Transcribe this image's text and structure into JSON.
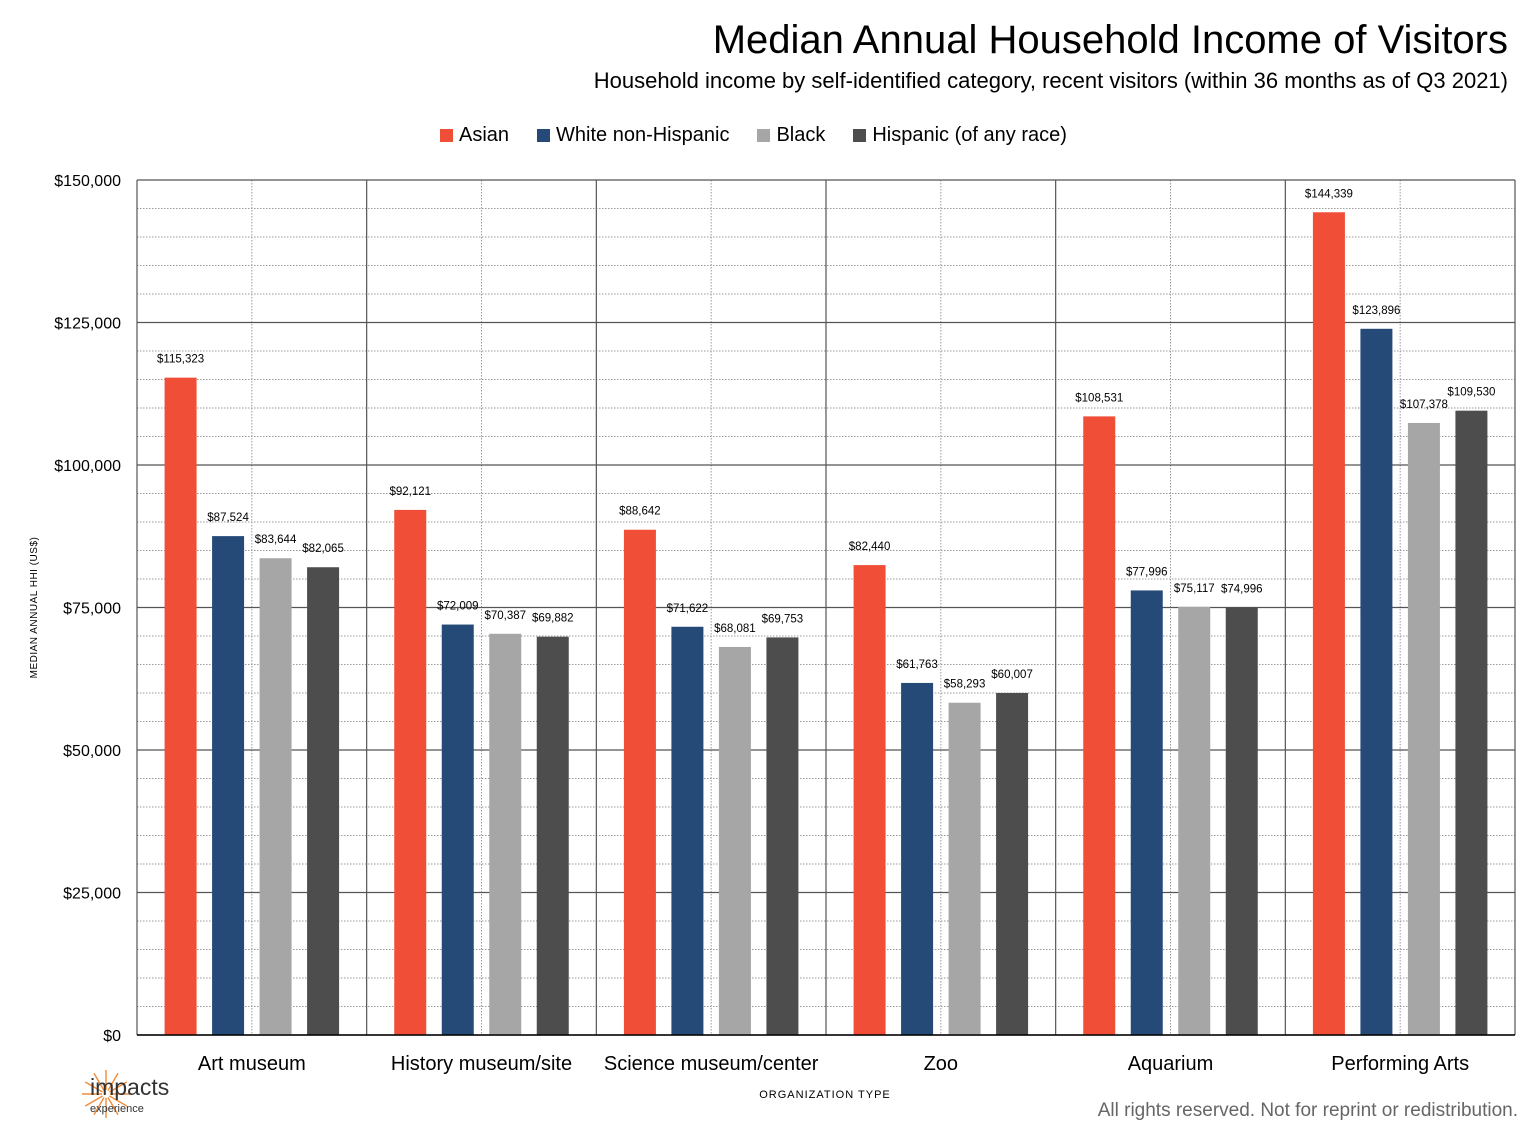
{
  "title": "Median Annual Household Income of Visitors",
  "subtitle": "Household income by self-identified category, recent visitors (within 36 months as of Q3 2021)",
  "footer": "All rights reserved. Not for reprint or redistribution.",
  "logo": {
    "word": "impacts",
    "sub": "experience"
  },
  "colors": {
    "asian": "#f04e37",
    "white": "#264a78",
    "black": "#a6a6a6",
    "hispanic": "#4d4d4d"
  },
  "chart_data": {
    "type": "bar",
    "xlabel": "ORGANIZATION TYPE",
    "ylabel": "MEDIAN ANNUAL HHI (US$)",
    "ylim": [
      0,
      150000
    ],
    "yticks": [
      0,
      25000,
      50000,
      75000,
      100000,
      125000,
      150000
    ],
    "ytick_labels": [
      "$0",
      "$25,000",
      "$50,000",
      "$75,000",
      "$100,000",
      "$125,000",
      "$150,000"
    ],
    "grid": true,
    "legend_position": "top",
    "categories": [
      "Art museum",
      "History museum/site",
      "Science museum/center",
      "Zoo",
      "Aquarium",
      "Performing Arts"
    ],
    "series": [
      {
        "name": "Asian",
        "color": "#f04e37",
        "values": [
          115323,
          92121,
          88642,
          82440,
          108531,
          144339
        ],
        "labels": [
          "$115,323",
          "$92,121",
          "$88,642",
          "$82,440",
          "$108,531",
          "$144,339"
        ]
      },
      {
        "name": "White non-Hispanic",
        "color": "#264a78",
        "values": [
          87524,
          72009,
          71622,
          61763,
          77996,
          123896
        ],
        "labels": [
          "$87,524",
          "$72,009",
          "$71,622",
          "$61,763",
          "$77,996",
          "$123,896"
        ]
      },
      {
        "name": "Black",
        "color": "#a6a6a6",
        "values": [
          83644,
          70387,
          68081,
          58293,
          75117,
          107378
        ],
        "labels": [
          "$83,644",
          "$70,387",
          "$68,081",
          "$58,293",
          "$75,117",
          "$107,378"
        ]
      },
      {
        "name": "Hispanic (of any race)",
        "color": "#4d4d4d",
        "values": [
          82065,
          69882,
          69753,
          60007,
          74996,
          109530
        ],
        "labels": [
          "$82,065",
          "$69,882",
          "$69,753",
          "$60,007",
          "$74,996",
          "$109,530"
        ]
      }
    ]
  }
}
